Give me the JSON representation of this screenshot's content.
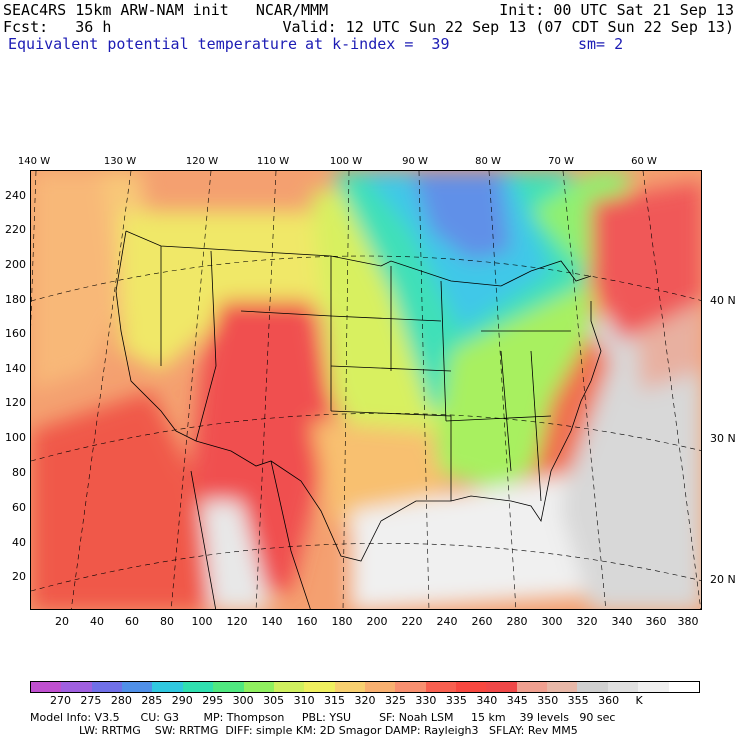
{
  "header": {
    "line1_left": "SEAC4RS 15km ARW-NAM init   NCAR/MMM",
    "line1_right": "Init: 00 UTC Sat 21 Sep 13",
    "line2_left": "Fcst:   36 h",
    "line2_right": "Valid: 12 UTC Sun 22 Sep 13 (07 CDT Sun 22 Sep 13)",
    "line3_left": "Equivalent potential temperature",
    "line3_mid": "at k-index =  39",
    "line3_right": "sm= 2"
  },
  "top_longitudes": [
    "140 W",
    "130 W",
    "120 W",
    "110 W",
    "100 W",
    "90 W",
    "80 W",
    "70 W",
    "60 W"
  ],
  "right_latitudes": [
    "40 N",
    "30 N",
    "20 N"
  ],
  "x_ticks": [
    "20",
    "40",
    "60",
    "80",
    "100",
    "120",
    "140",
    "160",
    "180",
    "200",
    "220",
    "240",
    "260",
    "280",
    "300",
    "320",
    "340",
    "360",
    "380"
  ],
  "y_ticks": [
    "240",
    "220",
    "200",
    "180",
    "160",
    "140",
    "120",
    "100",
    "80",
    "60",
    "40",
    "20"
  ],
  "colorbar": {
    "colors": [
      "#c050d0",
      "#a060e0",
      "#7070e8",
      "#5090e8",
      "#30c8e0",
      "#30e0b0",
      "#50e880",
      "#90f060",
      "#d0f060",
      "#f0f060",
      "#f8d070",
      "#f8b070",
      "#f89070",
      "#f86050",
      "#f84840",
      "#f04848",
      "#f0a090",
      "#e8b8a8",
      "#d0d0d0",
      "#e0e0e0",
      "#f0f0f0",
      "#ffffff"
    ],
    "labels": [
      "270",
      "275",
      "280",
      "285",
      "290",
      "295",
      "300",
      "305",
      "310",
      "315",
      "320",
      "325",
      "330",
      "335",
      "340",
      "345",
      "350",
      "355",
      "360",
      "K"
    ]
  },
  "footer": {
    "line1": "Model Info: V3.5      CU: G3       MP: Thompson     PBL: YSU        SF: Noah LSM     15 km    39 levels   90 sec",
    "line2": "              LW: RRTMG    SW: RRTMG  DIFF: simple KM: 2D Smagor DAMP: Rayleigh3   SFLAY: Rev MM5"
  }
}
